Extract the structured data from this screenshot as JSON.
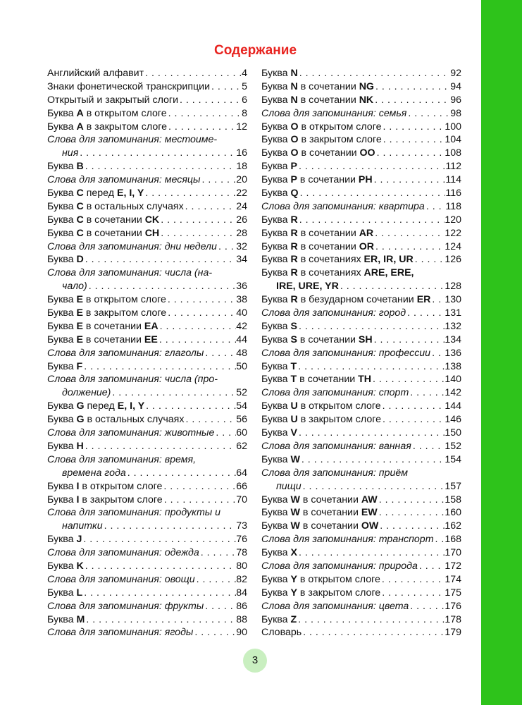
{
  "title": "Содержание",
  "page_number": "3",
  "colors": {
    "accent_green": "#2ec31b",
    "title_red": "#e8231f",
    "page_circle": "#c9efc0"
  },
  "left": [
    {
      "parts": [
        {
          "t": "Английский алфавит"
        }
      ],
      "page": "4"
    },
    {
      "parts": [
        {
          "t": "Знаки фонетической транскрипции"
        }
      ],
      "page": "5"
    },
    {
      "parts": [
        {
          "t": "Открытый и закрытый слоги"
        }
      ],
      "page": "6"
    },
    {
      "parts": [
        {
          "t": "Буква "
        },
        {
          "t": "A",
          "b": true
        },
        {
          "t": " в открытом слоге"
        }
      ],
      "page": "8"
    },
    {
      "parts": [
        {
          "t": "Буква "
        },
        {
          "t": "A",
          "b": true
        },
        {
          "t": " в закрытом слоге"
        }
      ],
      "page": "12"
    },
    {
      "italic": true,
      "parts": [
        {
          "t": "Слова для запоминания: местоиме-"
        }
      ],
      "cont": [
        {
          "t": "ния"
        }
      ],
      "page": "16"
    },
    {
      "parts": [
        {
          "t": "Буква "
        },
        {
          "t": "B",
          "b": true
        }
      ],
      "page": "18"
    },
    {
      "italic": true,
      "parts": [
        {
          "t": "Слова для запоминания: месяцы"
        }
      ],
      "page": "20"
    },
    {
      "parts": [
        {
          "t": "Буква "
        },
        {
          "t": "C",
          "b": true
        },
        {
          "t": " перед "
        },
        {
          "t": "E, I, Y",
          "b": true
        }
      ],
      "page": "22"
    },
    {
      "parts": [
        {
          "t": "Буква "
        },
        {
          "t": "C",
          "b": true
        },
        {
          "t": " в остальных случаях"
        }
      ],
      "page": "24"
    },
    {
      "parts": [
        {
          "t": "Буква "
        },
        {
          "t": "C",
          "b": true
        },
        {
          "t": " в сочетании "
        },
        {
          "t": "CK",
          "b": true
        }
      ],
      "page": "26"
    },
    {
      "parts": [
        {
          "t": "Буква "
        },
        {
          "t": "C",
          "b": true
        },
        {
          "t": " в сочетании "
        },
        {
          "t": "CH",
          "b": true
        }
      ],
      "page": "28"
    },
    {
      "italic": true,
      "parts": [
        {
          "t": "Слова для запоминания: дни недели"
        }
      ],
      "page": "32"
    },
    {
      "parts": [
        {
          "t": "Буква "
        },
        {
          "t": "D",
          "b": true
        }
      ],
      "page": "34"
    },
    {
      "italic": true,
      "parts": [
        {
          "t": "Слова для запоминания: числа (на-"
        }
      ],
      "cont": [
        {
          "t": "чало)"
        }
      ],
      "page": "36"
    },
    {
      "parts": [
        {
          "t": "Буква "
        },
        {
          "t": "E",
          "b": true
        },
        {
          "t": " в открытом слоге"
        }
      ],
      "page": "38"
    },
    {
      "parts": [
        {
          "t": "Буква "
        },
        {
          "t": "E",
          "b": true
        },
        {
          "t": " в закрытом слоге"
        }
      ],
      "page": "40"
    },
    {
      "parts": [
        {
          "t": "Буква "
        },
        {
          "t": "E",
          "b": true
        },
        {
          "t": " в сочетании "
        },
        {
          "t": "EA",
          "b": true
        }
      ],
      "page": "42"
    },
    {
      "parts": [
        {
          "t": "Буква "
        },
        {
          "t": "E",
          "b": true
        },
        {
          "t": " в сочетании "
        },
        {
          "t": "EE",
          "b": true
        }
      ],
      "page": "44"
    },
    {
      "italic": true,
      "parts": [
        {
          "t": "Слова для запоминания: глаголы"
        }
      ],
      "page": "48"
    },
    {
      "parts": [
        {
          "t": "Буква "
        },
        {
          "t": "F",
          "b": true
        }
      ],
      "page": "50"
    },
    {
      "italic": true,
      "parts": [
        {
          "t": "Слова для запоминания: числа (про-"
        }
      ],
      "cont": [
        {
          "t": "должение)"
        }
      ],
      "page": "52"
    },
    {
      "parts": [
        {
          "t": "Буква "
        },
        {
          "t": "G",
          "b": true
        },
        {
          "t": " перед "
        },
        {
          "t": "E, I, Y",
          "b": true
        }
      ],
      "page": "54"
    },
    {
      "parts": [
        {
          "t": "Буква "
        },
        {
          "t": "G",
          "b": true
        },
        {
          "t": " в остальных случаях"
        }
      ],
      "page": "56"
    },
    {
      "italic": true,
      "parts": [
        {
          "t": "Слова для запоминания: животные"
        }
      ],
      "page": "60"
    },
    {
      "parts": [
        {
          "t": "Буква "
        },
        {
          "t": "H",
          "b": true
        }
      ],
      "page": "62"
    },
    {
      "italic": true,
      "parts": [
        {
          "t": "Слова для запоминания: время,"
        }
      ],
      "cont": [
        {
          "t": "времена года"
        }
      ],
      "page": "64"
    },
    {
      "parts": [
        {
          "t": "Буква "
        },
        {
          "t": "I",
          "b": true
        },
        {
          "t": " в открытом слоге"
        }
      ],
      "page": "66"
    },
    {
      "parts": [
        {
          "t": "Буква "
        },
        {
          "t": "I",
          "b": true
        },
        {
          "t": " в закрытом слоге"
        }
      ],
      "page": "70"
    },
    {
      "italic": true,
      "parts": [
        {
          "t": "Слова для запоминания: продукты и"
        }
      ],
      "cont": [
        {
          "t": "напитки"
        }
      ],
      "page": "73"
    },
    {
      "parts": [
        {
          "t": "Буква "
        },
        {
          "t": "J",
          "b": true
        }
      ],
      "page": "76"
    },
    {
      "italic": true,
      "parts": [
        {
          "t": "Слова для запоминания: одежда"
        }
      ],
      "page": "78"
    },
    {
      "parts": [
        {
          "t": "Буква "
        },
        {
          "t": "K",
          "b": true
        }
      ],
      "page": "80"
    },
    {
      "italic": true,
      "parts": [
        {
          "t": "Слова для запоминания: овощи"
        }
      ],
      "page": "82"
    },
    {
      "parts": [
        {
          "t": "Буква "
        },
        {
          "t": "L",
          "b": true
        }
      ],
      "page": "84"
    },
    {
      "italic": true,
      "parts": [
        {
          "t": "Слова для запоминания: фрукты"
        }
      ],
      "page": "86"
    },
    {
      "parts": [
        {
          "t": "Буква "
        },
        {
          "t": "M",
          "b": true
        }
      ],
      "page": "88"
    },
    {
      "italic": true,
      "parts": [
        {
          "t": "Слова для запоминания: ягоды"
        }
      ],
      "page": "90"
    }
  ],
  "right": [
    {
      "parts": [
        {
          "t": "Буква "
        },
        {
          "t": "N",
          "b": true
        }
      ],
      "page": "92"
    },
    {
      "parts": [
        {
          "t": "Буква "
        },
        {
          "t": "N",
          "b": true
        },
        {
          "t": " в сочетании "
        },
        {
          "t": "NG",
          "b": true
        }
      ],
      "page": "94"
    },
    {
      "parts": [
        {
          "t": "Буква "
        },
        {
          "t": "N",
          "b": true
        },
        {
          "t": " в сочетании "
        },
        {
          "t": "NK",
          "b": true
        }
      ],
      "page": "96"
    },
    {
      "italic": true,
      "parts": [
        {
          "t": "Слова для запоминания: семья"
        }
      ],
      "page": "98"
    },
    {
      "parts": [
        {
          "t": "Буква "
        },
        {
          "t": "O",
          "b": true
        },
        {
          "t": " в открытом слоге"
        }
      ],
      "page": "100"
    },
    {
      "parts": [
        {
          "t": "Буква "
        },
        {
          "t": "O",
          "b": true
        },
        {
          "t": " в закрытом слоге"
        }
      ],
      "page": "104"
    },
    {
      "parts": [
        {
          "t": "Буква "
        },
        {
          "t": "O",
          "b": true
        },
        {
          "t": " в сочетании "
        },
        {
          "t": "OO",
          "b": true
        }
      ],
      "page": "108"
    },
    {
      "parts": [
        {
          "t": "Буква "
        },
        {
          "t": "P",
          "b": true
        }
      ],
      "page": "112"
    },
    {
      "parts": [
        {
          "t": "Буква "
        },
        {
          "t": "P",
          "b": true
        },
        {
          "t": " в сочетании "
        },
        {
          "t": "PH",
          "b": true
        }
      ],
      "page": "114"
    },
    {
      "parts": [
        {
          "t": "Буква "
        },
        {
          "t": "Q",
          "b": true
        }
      ],
      "page": "116"
    },
    {
      "italic": true,
      "parts": [
        {
          "t": "Слова для запоминания: квартира"
        }
      ],
      "page": "118"
    },
    {
      "parts": [
        {
          "t": "Буква "
        },
        {
          "t": "R",
          "b": true
        }
      ],
      "page": "120"
    },
    {
      "parts": [
        {
          "t": "Буква "
        },
        {
          "t": "R",
          "b": true
        },
        {
          "t": " в сочетании "
        },
        {
          "t": "AR",
          "b": true
        }
      ],
      "page": "122"
    },
    {
      "parts": [
        {
          "t": "Буква "
        },
        {
          "t": "R",
          "b": true
        },
        {
          "t": " в сочетании "
        },
        {
          "t": "OR",
          "b": true
        }
      ],
      "page": "124"
    },
    {
      "parts": [
        {
          "t": "Буква "
        },
        {
          "t": "R",
          "b": true
        },
        {
          "t": " в сочетаниях "
        },
        {
          "t": "ER, IR, UR",
          "b": true
        }
      ],
      "page": "126"
    },
    {
      "parts": [
        {
          "t": "Буква "
        },
        {
          "t": "R",
          "b": true
        },
        {
          "t": " в сочетаниях "
        },
        {
          "t": "ARE, ERE,",
          "b": true
        }
      ],
      "cont": [
        {
          "t": "IRE, URE, YR",
          "b": true
        }
      ],
      "page": "128"
    },
    {
      "parts": [
        {
          "t": "Буква "
        },
        {
          "t": "R",
          "b": true
        },
        {
          "t": " в безударном сочетании "
        },
        {
          "t": "ER",
          "b": true
        }
      ],
      "page": "130"
    },
    {
      "italic": true,
      "parts": [
        {
          "t": "Слова для запоминания: город"
        }
      ],
      "page": "131"
    },
    {
      "parts": [
        {
          "t": "Буква "
        },
        {
          "t": "S",
          "b": true
        }
      ],
      "page": "132"
    },
    {
      "parts": [
        {
          "t": "Буква "
        },
        {
          "t": "S",
          "b": true
        },
        {
          "t": " в сочетании "
        },
        {
          "t": "SH",
          "b": true
        }
      ],
      "page": "134"
    },
    {
      "italic": true,
      "parts": [
        {
          "t": "Слова для запоминания: профессии"
        }
      ],
      "page": "136"
    },
    {
      "parts": [
        {
          "t": "Буква "
        },
        {
          "t": "T",
          "b": true
        }
      ],
      "page": "138"
    },
    {
      "parts": [
        {
          "t": "Буква "
        },
        {
          "t": "T",
          "b": true
        },
        {
          "t": " в сочетании "
        },
        {
          "t": "TH",
          "b": true
        }
      ],
      "page": "140"
    },
    {
      "italic": true,
      "parts": [
        {
          "t": "Слова для запоминания: спорт"
        }
      ],
      "page": "142"
    },
    {
      "parts": [
        {
          "t": "Буква "
        },
        {
          "t": "U",
          "b": true
        },
        {
          "t": " в открытом слоге"
        }
      ],
      "page": "144"
    },
    {
      "parts": [
        {
          "t": "Буква "
        },
        {
          "t": "U",
          "b": true
        },
        {
          "t": " в закрытом слоге"
        }
      ],
      "page": "146"
    },
    {
      "parts": [
        {
          "t": "Буква "
        },
        {
          "t": "V",
          "b": true
        }
      ],
      "page": "150"
    },
    {
      "italic": true,
      "parts": [
        {
          "t": "Слова для запоминания: ванная"
        }
      ],
      "page": "152"
    },
    {
      "parts": [
        {
          "t": "Буква "
        },
        {
          "t": "W",
          "b": true
        }
      ],
      "page": "154"
    },
    {
      "italic": true,
      "parts": [
        {
          "t": "Слова для запоминания: приём"
        }
      ],
      "cont": [
        {
          "t": "пищи"
        }
      ],
      "page": "157"
    },
    {
      "parts": [
        {
          "t": "Буква "
        },
        {
          "t": "W",
          "b": true
        },
        {
          "t": " в сочетании "
        },
        {
          "t": "AW",
          "b": true
        }
      ],
      "page": "158"
    },
    {
      "parts": [
        {
          "t": "Буква "
        },
        {
          "t": "W",
          "b": true
        },
        {
          "t": " в сочетании "
        },
        {
          "t": "EW",
          "b": true
        }
      ],
      "page": "160"
    },
    {
      "parts": [
        {
          "t": "Буква "
        },
        {
          "t": "W",
          "b": true
        },
        {
          "t": " в сочетании "
        },
        {
          "t": "OW",
          "b": true
        }
      ],
      "page": "162"
    },
    {
      "italic": true,
      "parts": [
        {
          "t": "Слова для запоминания: транспорт"
        }
      ],
      "page": "168"
    },
    {
      "parts": [
        {
          "t": "Буква "
        },
        {
          "t": "X",
          "b": true
        }
      ],
      "page": "170"
    },
    {
      "italic": true,
      "parts": [
        {
          "t": "Слова для запоминания: природа"
        }
      ],
      "page": "172"
    },
    {
      "parts": [
        {
          "t": "Буква "
        },
        {
          "t": "Y",
          "b": true
        },
        {
          "t": " в открытом слоге"
        }
      ],
      "page": "174"
    },
    {
      "parts": [
        {
          "t": "Буква "
        },
        {
          "t": "Y",
          "b": true
        },
        {
          "t": " в закрытом слоге"
        }
      ],
      "page": "175"
    },
    {
      "italic": true,
      "parts": [
        {
          "t": "Слова для запоминания: цвета"
        }
      ],
      "page": "176"
    },
    {
      "parts": [
        {
          "t": "Буква "
        },
        {
          "t": "Z",
          "b": true
        }
      ],
      "page": "178"
    },
    {
      "parts": [
        {
          "t": "Словарь"
        }
      ],
      "page": "179"
    }
  ]
}
